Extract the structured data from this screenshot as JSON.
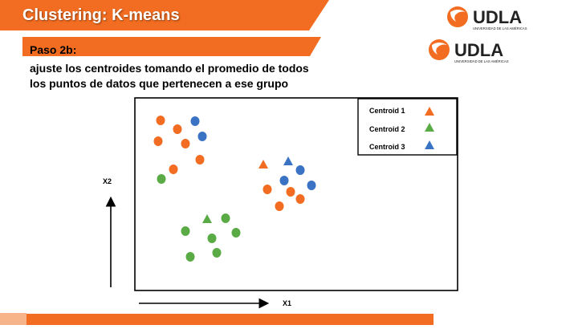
{
  "slide": {
    "title": "Clustering: K-means",
    "step": "Paso 2b:",
    "description_lines": [
      "ajuste los centroides tomando el promedio de todos",
      "los puntos de datos que pertenecen a ese grupo"
    ]
  },
  "logo": {
    "text": "UDLA",
    "subtext": "UNIVERSIDAD DE LAS AMÉRICAS"
  },
  "colors": {
    "brand_orange": "#f26d21",
    "cluster1": "#f26d21",
    "cluster2": "#5aab46",
    "cluster3": "#3a73c3"
  },
  "diagram": {
    "x_axis_label": "X1",
    "y_axis_label": "X2",
    "legend": [
      {
        "label": "Centroid 1",
        "color": "#f26d21"
      },
      {
        "label": "Centroid 2",
        "color": "#5aab46"
      },
      {
        "label": "Centroid 3",
        "color": "#3a73c3"
      }
    ]
  }
}
